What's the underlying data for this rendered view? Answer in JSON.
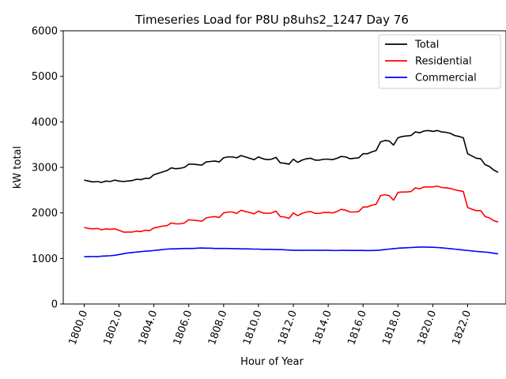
{
  "chart_data": {
    "type": "line",
    "title": "Timeseries Load for P8U p8uhs2_1247  Day 76",
    "xlabel": "Hour of Year",
    "ylabel": "kW total",
    "xlim": [
      1798.8,
      1824.2
    ],
    "ylim": [
      0,
      6000
    ],
    "x_ticks": [
      1800.0,
      1802.0,
      1804.0,
      1806.0,
      1808.0,
      1810.0,
      1812.0,
      1814.0,
      1816.0,
      1818.0,
      1820.0,
      1822.0
    ],
    "x_tick_labels": [
      "1800.0",
      "1802.0",
      "1804.0",
      "1806.0",
      "1808.0",
      "1810.0",
      "1812.0",
      "1814.0",
      "1816.0",
      "1818.0",
      "1820.0",
      "1822.0"
    ],
    "y_ticks": [
      0,
      1000,
      2000,
      3000,
      4000,
      5000,
      6000
    ],
    "y_tick_labels": [
      "0",
      "1000",
      "2000",
      "3000",
      "4000",
      "5000",
      "6000"
    ],
    "legend_position": "top-right",
    "x_start": 1800.0,
    "x_step": 0.25,
    "series": [
      {
        "name": "Total",
        "color": "#000000",
        "values": [
          2720,
          2700,
          2680,
          2690,
          2670,
          2700,
          2690,
          2720,
          2700,
          2690,
          2700,
          2710,
          2740,
          2730,
          2760,
          2760,
          2840,
          2870,
          2900,
          2930,
          2990,
          2970,
          2980,
          3000,
          3070,
          3070,
          3060,
          3050,
          3120,
          3130,
          3140,
          3120,
          3210,
          3230,
          3230,
          3210,
          3260,
          3230,
          3200,
          3170,
          3230,
          3190,
          3170,
          3180,
          3220,
          3100,
          3090,
          3070,
          3180,
          3110,
          3160,
          3190,
          3200,
          3160,
          3160,
          3180,
          3180,
          3170,
          3200,
          3240,
          3230,
          3190,
          3200,
          3210,
          3300,
          3300,
          3340,
          3370,
          3560,
          3590,
          3580,
          3490,
          3650,
          3680,
          3690,
          3700,
          3780,
          3760,
          3800,
          3810,
          3790,
          3810,
          3780,
          3770,
          3750,
          3700,
          3680,
          3650,
          3300,
          3250,
          3200,
          3190,
          3060,
          3020,
          2940,
          2890
        ]
      },
      {
        "name": "Residential",
        "color": "#ff0000",
        "values": [
          1680,
          1660,
          1650,
          1660,
          1630,
          1650,
          1640,
          1650,
          1620,
          1580,
          1580,
          1580,
          1600,
          1590,
          1620,
          1610,
          1670,
          1690,
          1710,
          1720,
          1780,
          1760,
          1760,
          1780,
          1850,
          1840,
          1830,
          1820,
          1890,
          1910,
          1920,
          1900,
          2000,
          2020,
          2020,
          1990,
          2060,
          2030,
          2010,
          1980,
          2040,
          2000,
          1990,
          2000,
          2040,
          1920,
          1910,
          1880,
          2000,
          1940,
          1990,
          2020,
          2030,
          1990,
          1990,
          2010,
          2010,
          2000,
          2030,
          2080,
          2060,
          2020,
          2020,
          2030,
          2130,
          2130,
          2170,
          2190,
          2380,
          2400,
          2380,
          2280,
          2450,
          2460,
          2460,
          2470,
          2550,
          2530,
          2570,
          2570,
          2570,
          2590,
          2560,
          2550,
          2540,
          2510,
          2490,
          2470,
          2120,
          2080,
          2050,
          2050,
          1920,
          1890,
          1830,
          1800
        ]
      },
      {
        "name": "Commercial",
        "color": "#0000ff",
        "values": [
          1040,
          1040,
          1045,
          1040,
          1050,
          1055,
          1060,
          1070,
          1085,
          1105,
          1120,
          1130,
          1140,
          1150,
          1160,
          1165,
          1175,
          1185,
          1195,
          1205,
          1210,
          1210,
          1215,
          1220,
          1220,
          1220,
          1225,
          1230,
          1225,
          1225,
          1220,
          1220,
          1220,
          1220,
          1215,
          1215,
          1210,
          1210,
          1208,
          1205,
          1205,
          1200,
          1200,
          1200,
          1195,
          1195,
          1190,
          1185,
          1180,
          1180,
          1178,
          1180,
          1180,
          1180,
          1178,
          1180,
          1180,
          1175,
          1175,
          1178,
          1178,
          1176,
          1176,
          1176,
          1176,
          1174,
          1174,
          1178,
          1185,
          1195,
          1205,
          1215,
          1225,
          1230,
          1235,
          1240,
          1245,
          1250,
          1250,
          1248,
          1245,
          1240,
          1235,
          1225,
          1215,
          1205,
          1195,
          1185,
          1175,
          1165,
          1155,
          1148,
          1140,
          1130,
          1115,
          1100
        ]
      }
    ]
  }
}
